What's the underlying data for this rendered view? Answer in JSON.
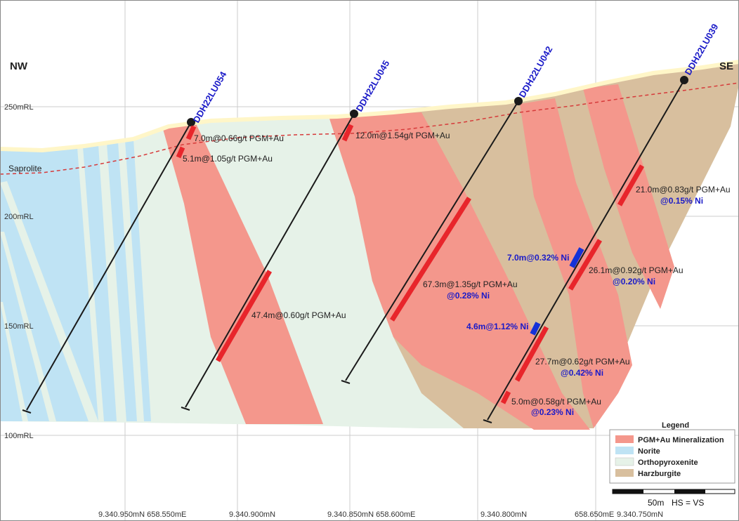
{
  "directions": {
    "left": "NW",
    "right": "SE"
  },
  "elevations": [
    "250mRL",
    "200mRL",
    "150mRL",
    "100mRL"
  ],
  "eastings": [
    "9.340.950mN 658.550mE",
    "9.340.900mN",
    "9.340.850mN 658.600mE",
    "9.340.800mN",
    "658.650mE",
    "9.340.750mN"
  ],
  "saprolite_label": "Saprolite",
  "drillholes": [
    "DDH22LU054",
    "DDH22LU045",
    "DDH22LU042",
    "DDH22LU039"
  ],
  "intercepts": {
    "h054_a": "7.0m@0.66g/t PGM+Au",
    "h054_b": "5.1m@1.05g/t PGM+Au",
    "h045_a": "12.0m@1.54g/t PGM+Au",
    "h045_b": "47.4m@0.60g/t PGM+Au",
    "h042_a": "67.3m@1.35g/t PGM+Au",
    "h042_a_ni": "@0.28% Ni",
    "h039_a": "21.0m@0.83g/t PGM+Au",
    "h039_a_ni": "@0.15% Ni",
    "h039_ni1": "7.0m@0.32% Ni",
    "h039_b": "26.1m@0.92g/t PGM+Au",
    "h039_b_ni": "@0.20% Ni",
    "h039_ni2": "4.6m@1.12% Ni",
    "h039_c": "27.7m@0.62g/t PGM+Au",
    "h039_c_ni": "@0.42% Ni",
    "h039_d": "5.0m@0.58g/t PGM+Au",
    "h039_d_ni": "@0.23% Ni"
  },
  "legend": {
    "title": "Legend",
    "items": [
      {
        "label": "PGM+Au Mineralization",
        "color": "#f4978c"
      },
      {
        "label": "Norite",
        "color": "#bfe3f4"
      },
      {
        "label": "Orthopyroxenite",
        "color": "#e6f2e8"
      },
      {
        "label": "Harzburgite",
        "color": "#d8bf9e"
      }
    ]
  },
  "scale": {
    "label": "50m",
    "note": "HS = VS"
  },
  "colors": {
    "pgm": "#f4978c",
    "norite": "#bfe3f4",
    "orthopyroxenite": "#e6f2e8",
    "harzburgite": "#d8bf9e",
    "drill_trace": "#1a1a1a",
    "intercept_red": "#e8252b",
    "intercept_blue": "#1432d8",
    "hole_label": "#1a1ac8"
  }
}
